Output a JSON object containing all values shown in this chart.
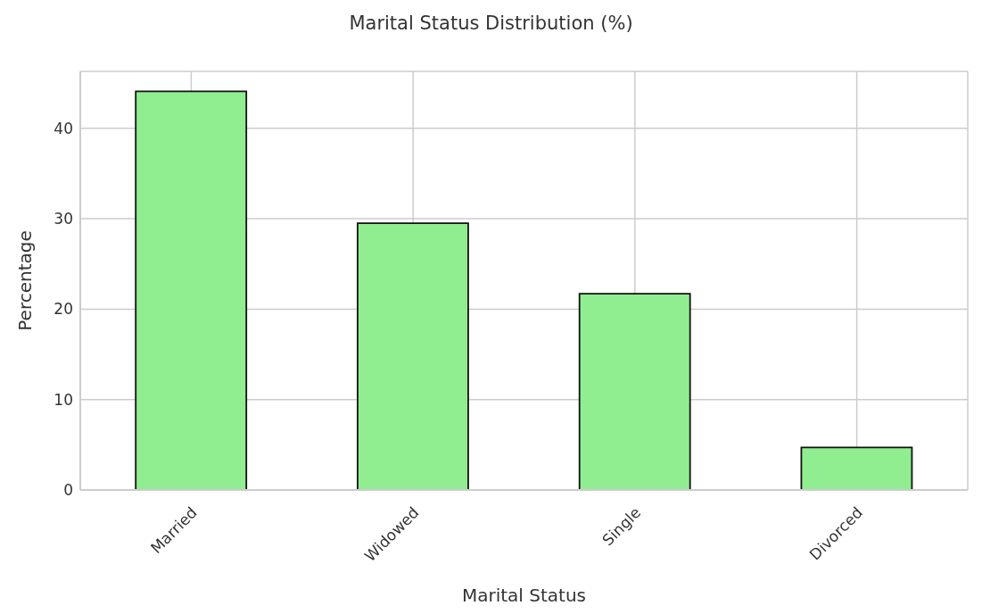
{
  "chart_data": {
    "type": "bar",
    "title": "Marital Status Distribution (%)",
    "xlabel": "Marital Status",
    "ylabel": "Percentage",
    "categories": [
      "Married",
      "Widowed",
      "Single",
      "Divorced"
    ],
    "values": [
      44.1,
      29.5,
      21.7,
      4.7
    ],
    "color": "#90ee90",
    "ylim": [
      0,
      46.3
    ],
    "yticks": [
      0,
      10,
      20,
      30,
      40
    ],
    "grid": true
  }
}
